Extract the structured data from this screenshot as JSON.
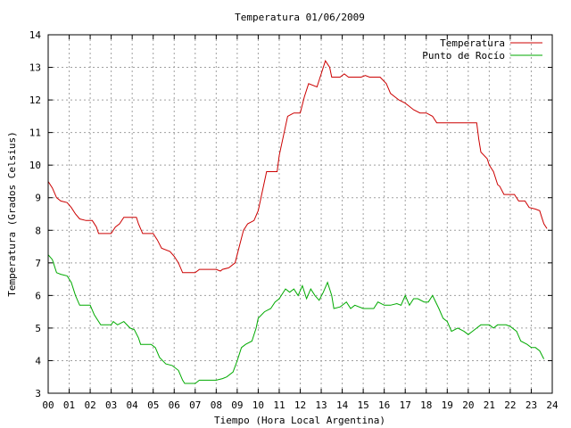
{
  "chart_data": {
    "type": "line",
    "title": "Temperatura 01/06/2009",
    "xlabel": "Tiempo (Hora Local Argentina)",
    "ylabel": "Temperatura (Grados Celsius)",
    "xlim": [
      0,
      24
    ],
    "ylim": [
      3,
      14
    ],
    "x_ticks": [
      "00",
      "01",
      "02",
      "03",
      "04",
      "05",
      "06",
      "07",
      "08",
      "09",
      "10",
      "11",
      "12",
      "13",
      "14",
      "15",
      "16",
      "17",
      "18",
      "19",
      "20",
      "21",
      "22",
      "23",
      "24"
    ],
    "y_ticks": [
      "3",
      "4",
      "5",
      "6",
      "7",
      "8",
      "9",
      "10",
      "11",
      "12",
      "13",
      "14"
    ],
    "grid": true,
    "legend_position": "top-right",
    "series": [
      {
        "name": "Temperatura",
        "color": "#cc0000",
        "points": [
          [
            0.0,
            9.5
          ],
          [
            0.2,
            9.3
          ],
          [
            0.4,
            9.0
          ],
          [
            0.6,
            8.9
          ],
          [
            0.9,
            8.85
          ],
          [
            1.1,
            8.7
          ],
          [
            1.3,
            8.5
          ],
          [
            1.5,
            8.35
          ],
          [
            1.8,
            8.3
          ],
          [
            2.1,
            8.3
          ],
          [
            2.3,
            8.1
          ],
          [
            2.4,
            7.9
          ],
          [
            3.0,
            7.9
          ],
          [
            3.2,
            8.1
          ],
          [
            3.4,
            8.2
          ],
          [
            3.6,
            8.4
          ],
          [
            3.9,
            8.4
          ],
          [
            4.2,
            8.4
          ],
          [
            4.3,
            8.2
          ],
          [
            4.5,
            7.9
          ],
          [
            5.0,
            7.9
          ],
          [
            5.2,
            7.7
          ],
          [
            5.4,
            7.45
          ],
          [
            5.8,
            7.35
          ],
          [
            6.0,
            7.2
          ],
          [
            6.2,
            7.0
          ],
          [
            6.4,
            6.7
          ],
          [
            7.0,
            6.7
          ],
          [
            7.2,
            6.8
          ],
          [
            8.0,
            6.8
          ],
          [
            8.2,
            6.75
          ],
          [
            8.3,
            6.8
          ],
          [
            8.6,
            6.85
          ],
          [
            8.9,
            7.0
          ],
          [
            9.1,
            7.5
          ],
          [
            9.3,
            8.0
          ],
          [
            9.5,
            8.2
          ],
          [
            9.8,
            8.3
          ],
          [
            10.0,
            8.6
          ],
          [
            10.2,
            9.2
          ],
          [
            10.4,
            9.8
          ],
          [
            10.9,
            9.8
          ],
          [
            11.0,
            10.3
          ],
          [
            11.2,
            10.9
          ],
          [
            11.4,
            11.5
          ],
          [
            11.7,
            11.6
          ],
          [
            12.0,
            11.6
          ],
          [
            12.2,
            12.1
          ],
          [
            12.4,
            12.5
          ],
          [
            12.8,
            12.4
          ],
          [
            13.0,
            12.8
          ],
          [
            13.2,
            13.2
          ],
          [
            13.4,
            13.0
          ],
          [
            13.5,
            12.7
          ],
          [
            13.9,
            12.7
          ],
          [
            14.1,
            12.8
          ],
          [
            14.3,
            12.7
          ],
          [
            14.9,
            12.7
          ],
          [
            15.1,
            12.75
          ],
          [
            15.3,
            12.7
          ],
          [
            15.8,
            12.7
          ],
          [
            16.1,
            12.5
          ],
          [
            16.3,
            12.2
          ],
          [
            16.7,
            12.0
          ],
          [
            17.0,
            11.9
          ],
          [
            17.2,
            11.8
          ],
          [
            17.4,
            11.7
          ],
          [
            17.7,
            11.6
          ],
          [
            18.0,
            11.6
          ],
          [
            18.3,
            11.5
          ],
          [
            18.5,
            11.3
          ],
          [
            19.0,
            11.3
          ],
          [
            19.5,
            11.3
          ],
          [
            20.0,
            11.3
          ],
          [
            20.4,
            11.3
          ],
          [
            20.5,
            10.8
          ],
          [
            20.6,
            10.4
          ],
          [
            20.9,
            10.2
          ],
          [
            21.0,
            10.0
          ],
          [
            21.2,
            9.8
          ],
          [
            21.4,
            9.4
          ],
          [
            21.5,
            9.35
          ],
          [
            21.7,
            9.1
          ],
          [
            22.0,
            9.1
          ],
          [
            22.2,
            9.1
          ],
          [
            22.4,
            8.9
          ],
          [
            22.7,
            8.9
          ],
          [
            22.9,
            8.7
          ],
          [
            23.2,
            8.65
          ],
          [
            23.4,
            8.6
          ],
          [
            23.5,
            8.4
          ],
          [
            23.6,
            8.2
          ],
          [
            23.75,
            8.05
          ]
        ]
      },
      {
        "name": "Punto de Rocío",
        "color": "#00aa00",
        "points": [
          [
            0.0,
            7.25
          ],
          [
            0.2,
            7.1
          ],
          [
            0.4,
            6.7
          ],
          [
            0.6,
            6.65
          ],
          [
            0.9,
            6.6
          ],
          [
            1.1,
            6.4
          ],
          [
            1.3,
            6.0
          ],
          [
            1.5,
            5.7
          ],
          [
            2.0,
            5.7
          ],
          [
            2.2,
            5.4
          ],
          [
            2.5,
            5.1
          ],
          [
            3.0,
            5.1
          ],
          [
            3.1,
            5.2
          ],
          [
            3.3,
            5.1
          ],
          [
            3.6,
            5.2
          ],
          [
            3.9,
            5.0
          ],
          [
            4.1,
            4.95
          ],
          [
            4.3,
            4.7
          ],
          [
            4.4,
            4.5
          ],
          [
            4.9,
            4.5
          ],
          [
            5.1,
            4.4
          ],
          [
            5.3,
            4.1
          ],
          [
            5.6,
            3.9
          ],
          [
            5.9,
            3.85
          ],
          [
            6.2,
            3.7
          ],
          [
            6.4,
            3.4
          ],
          [
            6.5,
            3.3
          ],
          [
            7.0,
            3.3
          ],
          [
            7.2,
            3.4
          ],
          [
            8.0,
            3.4
          ],
          [
            8.3,
            3.45
          ],
          [
            8.5,
            3.5
          ],
          [
            8.8,
            3.65
          ],
          [
            9.0,
            4.0
          ],
          [
            9.2,
            4.4
          ],
          [
            9.4,
            4.5
          ],
          [
            9.7,
            4.6
          ],
          [
            9.9,
            5.0
          ],
          [
            10.0,
            5.3
          ],
          [
            10.3,
            5.5
          ],
          [
            10.6,
            5.6
          ],
          [
            10.8,
            5.8
          ],
          [
            11.0,
            5.9
          ],
          [
            11.1,
            6.0
          ],
          [
            11.3,
            6.2
          ],
          [
            11.5,
            6.1
          ],
          [
            11.7,
            6.2
          ],
          [
            11.9,
            6.0
          ],
          [
            12.1,
            6.3
          ],
          [
            12.3,
            5.9
          ],
          [
            12.5,
            6.2
          ],
          [
            12.7,
            6.0
          ],
          [
            12.9,
            5.85
          ],
          [
            13.1,
            6.1
          ],
          [
            13.3,
            6.4
          ],
          [
            13.5,
            6.0
          ],
          [
            13.6,
            5.6
          ],
          [
            13.9,
            5.65
          ],
          [
            14.2,
            5.8
          ],
          [
            14.4,
            5.6
          ],
          [
            14.6,
            5.7
          ],
          [
            15.0,
            5.6
          ],
          [
            15.5,
            5.6
          ],
          [
            15.7,
            5.8
          ],
          [
            16.0,
            5.7
          ],
          [
            16.3,
            5.7
          ],
          [
            16.6,
            5.75
          ],
          [
            16.8,
            5.7
          ],
          [
            17.0,
            6.0
          ],
          [
            17.2,
            5.7
          ],
          [
            17.4,
            5.9
          ],
          [
            17.6,
            5.9
          ],
          [
            17.9,
            5.8
          ],
          [
            18.1,
            5.8
          ],
          [
            18.3,
            6.0
          ],
          [
            18.6,
            5.6
          ],
          [
            18.8,
            5.3
          ],
          [
            19.0,
            5.2
          ],
          [
            19.2,
            4.9
          ],
          [
            19.5,
            5.0
          ],
          [
            19.8,
            4.9
          ],
          [
            20.0,
            4.8
          ],
          [
            20.2,
            4.9
          ],
          [
            20.4,
            5.0
          ],
          [
            20.6,
            5.1
          ],
          [
            21.0,
            5.1
          ],
          [
            21.2,
            5.0
          ],
          [
            21.4,
            5.1
          ],
          [
            21.8,
            5.1
          ],
          [
            22.0,
            5.05
          ],
          [
            22.3,
            4.9
          ],
          [
            22.5,
            4.6
          ],
          [
            22.8,
            4.5
          ],
          [
            23.0,
            4.4
          ],
          [
            23.2,
            4.4
          ],
          [
            23.4,
            4.3
          ],
          [
            23.6,
            4.05
          ]
        ]
      }
    ]
  }
}
